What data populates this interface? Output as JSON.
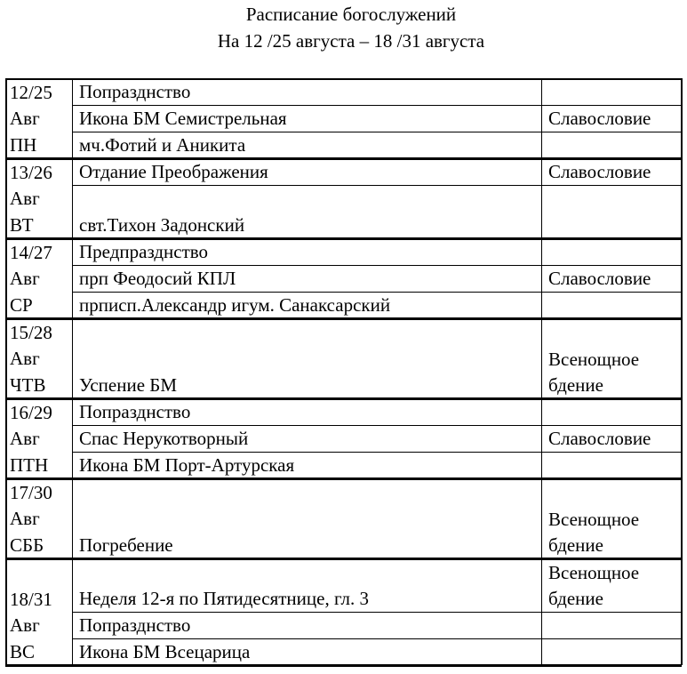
{
  "header": {
    "title": "Расписание богослужений",
    "subtitle": "На  12 /25 августа – 18 /31 августа"
  },
  "days": [
    {
      "date": "12/25",
      "month": "Авг",
      "weekday": "ПН",
      "rows": [
        {
          "feast": "Попразднство",
          "service": ""
        },
        {
          "feast": "Икона БМ Семистрельная",
          "service": "Славословие"
        },
        {
          "feast": "мч.Фотий и Аникита",
          "service": ""
        }
      ]
    },
    {
      "date": "13/26",
      "month": "Авг",
      "weekday": "ВТ",
      "rows": [
        {
          "feast": "Отдание Преображения",
          "service": "Славословие"
        },
        {
          "feast": "свт.Тихон Задонский",
          "service": ""
        }
      ]
    },
    {
      "date": "14/27",
      "month": "Авг",
      "weekday": "СР",
      "rows": [
        {
          "feast": "Предпразднство",
          "service": ""
        },
        {
          "feast": "прп Феодосий КПЛ",
          "service": "Славословие"
        },
        {
          "feast": "прписп.Александр игум. Санаксарский",
          "service": ""
        }
      ]
    },
    {
      "date": "15/28",
      "month": "Авг",
      "weekday": "ЧТВ",
      "rows": [
        {
          "feast": "Успение БМ",
          "service": "Всенощное бдение"
        }
      ]
    },
    {
      "date": "16/29",
      "month": "Авг",
      "weekday": "ПТН",
      "rows": [
        {
          "feast": "Попразднство",
          "service": ""
        },
        {
          "feast": "Спас Нерукотворный",
          "service": "Славословие"
        },
        {
          "feast": "Икона БМ Порт-Артурская",
          "service": ""
        }
      ]
    },
    {
      "date": "17/30",
      "month": "Авг",
      "weekday": "СББ",
      "rows": [
        {
          "feast": "Погребение",
          "service": "Всенощное бдение"
        }
      ]
    },
    {
      "date": "18/31",
      "month": "Авг",
      "weekday": "ВС",
      "rows": [
        {
          "feast": "Неделя 12-я по Пятидесятнице, гл. 3",
          "service": "Всенощное бдение"
        },
        {
          "feast": "Попразднство",
          "service": ""
        },
        {
          "feast": "Икона БМ Всецарица",
          "service": ""
        }
      ]
    }
  ]
}
